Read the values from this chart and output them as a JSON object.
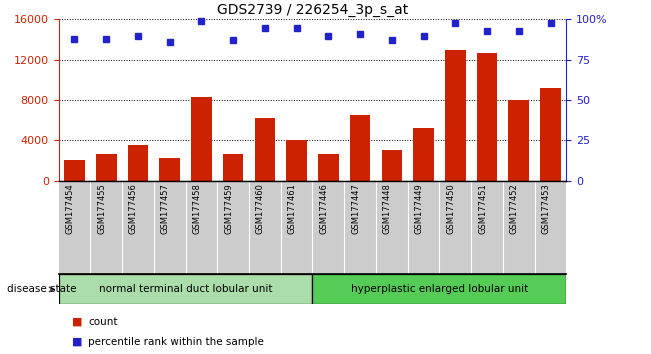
{
  "title": "GDS2739 / 226254_3p_s_at",
  "samples": [
    "GSM177454",
    "GSM177455",
    "GSM177456",
    "GSM177457",
    "GSM177458",
    "GSM177459",
    "GSM177460",
    "GSM177461",
    "GSM177446",
    "GSM177447",
    "GSM177448",
    "GSM177449",
    "GSM177450",
    "GSM177451",
    "GSM177452",
    "GSM177453"
  ],
  "counts": [
    2000,
    2600,
    3500,
    2200,
    8300,
    2600,
    6200,
    4000,
    2600,
    6500,
    3000,
    5200,
    13000,
    12700,
    8000,
    9200
  ],
  "percentiles": [
    88,
    88,
    90,
    86,
    99,
    87,
    95,
    95,
    90,
    91,
    87,
    90,
    98,
    93,
    93,
    98
  ],
  "group1_label": "normal terminal duct lobular unit",
  "group2_label": "hyperplastic enlarged lobular unit",
  "group1_count": 8,
  "group2_count": 8,
  "ylim_left": [
    0,
    16000
  ],
  "ylim_right": [
    0,
    100
  ],
  "yticks_left": [
    0,
    4000,
    8000,
    12000,
    16000
  ],
  "yticks_right": [
    0,
    25,
    50,
    75,
    100
  ],
  "bar_color": "#cc2200",
  "dot_color": "#2222cc",
  "group1_color": "#aaddaa",
  "group2_color": "#55cc55",
  "xlabels_bg": "#cccccc",
  "disease_state_label": "disease state",
  "legend_count_label": "count",
  "legend_percentile_label": "percentile rank within the sample",
  "background_color": "#ffffff"
}
